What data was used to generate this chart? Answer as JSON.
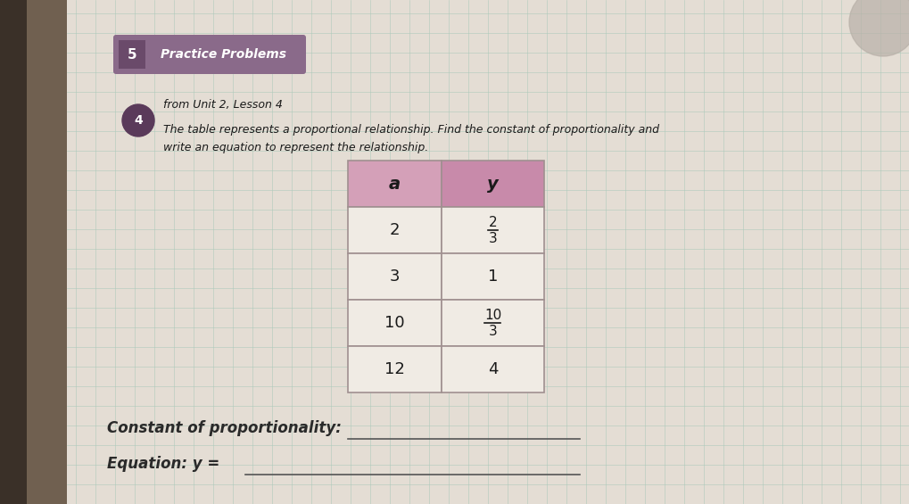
{
  "bg_left_color": "#8a8070",
  "bg_mid_color": "#d8d2c8",
  "bg_right_color": "#ccc8c0",
  "page_color": "#e8e2d8",
  "grid_color": "#b8d8c8",
  "section_label": "5",
  "section_title": "Practice Problems",
  "section_header_color": "#8a6a8a",
  "section_header_text_color": "#ffffff",
  "bullet_color": "#5a3a5a",
  "from_text": "from Unit 2, Lesson 4",
  "problem_text_line1": "The table represents a proportional relationship. Find the constant of proportionality and",
  "problem_text_line2": "write an equation to represent the relationship.",
  "table_header_a_color": "#d4a0b8",
  "table_header_y_color": "#c88aaa",
  "table_row_color": "#f0ebe4",
  "table_border_color": "#a09090",
  "col_headers": [
    "a",
    "y"
  ],
  "rows": [
    [
      "2",
      "2/3"
    ],
    [
      "3",
      "1"
    ],
    [
      "10",
      "10/3"
    ],
    [
      "12",
      "4"
    ]
  ],
  "constant_label": "Constant of proportionality:",
  "equation_label": "Equation: y =",
  "text_color": "#1a1a1a",
  "label_text_color": "#2a2a2a"
}
